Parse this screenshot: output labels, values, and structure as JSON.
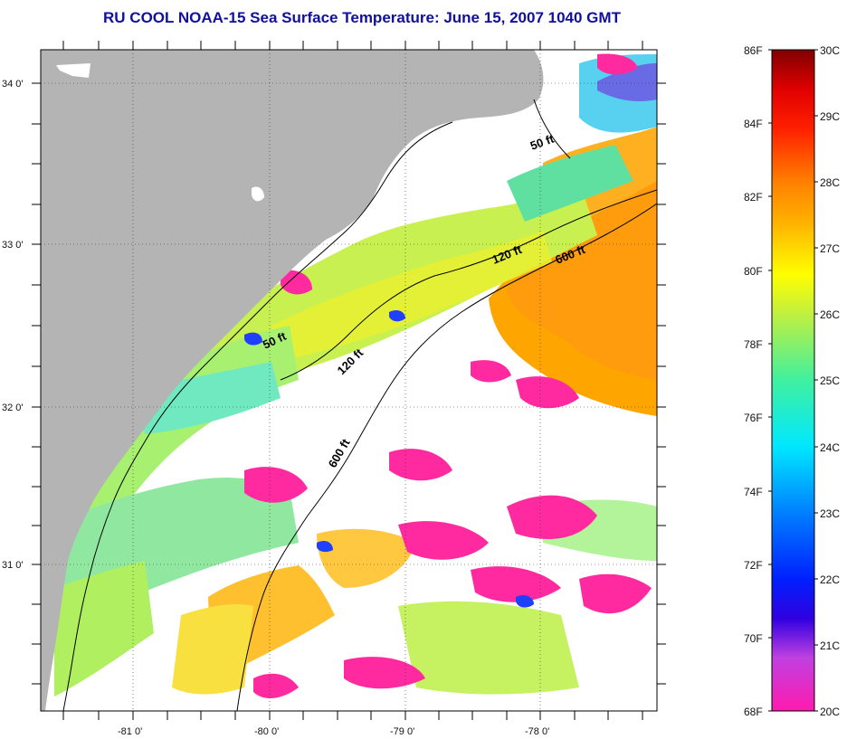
{
  "title": "RU COOL  NOAA-15  Sea Surface Temperature:  June 15, 2007 1040 GMT",
  "lat_labels": [
    "34 0'",
    "33 0'",
    "32 0'",
    "31 0'"
  ],
  "lon_labels": [
    "-81 0'",
    "-80 0'",
    "-79 0'",
    "-78 0'"
  ],
  "contours": {
    "label_50_north": "50 ft",
    "label_50_south": "50 ft",
    "label_120_north": "120 ft",
    "label_120_south": "120 ft",
    "label_600_north": "600 ft",
    "label_600_south": "600 ft"
  },
  "colorbar": {
    "fahrenheit_labels": [
      "86F",
      "84F",
      "82F",
      "80F",
      "78F",
      "76F",
      "74F",
      "72F",
      "70F",
      "68F"
    ],
    "celsius_labels": [
      "30C",
      "29C",
      "28C",
      "27C",
      "26C",
      "25C",
      "24C",
      "23C",
      "22C",
      "21C",
      "20C"
    ]
  },
  "colors": {
    "land": "#b4b4b4",
    "cloud": "#ffffff",
    "title": "#1010a0"
  }
}
